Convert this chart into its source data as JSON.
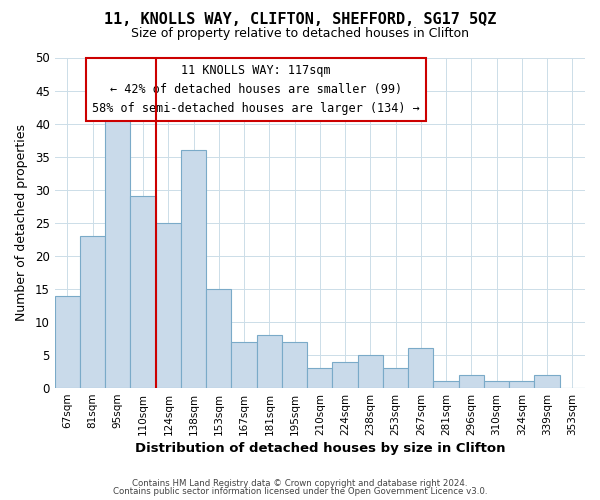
{
  "title": "11, KNOLLS WAY, CLIFTON, SHEFFORD, SG17 5QZ",
  "subtitle": "Size of property relative to detached houses in Clifton",
  "xlabel": "Distribution of detached houses by size in Clifton",
  "ylabel": "Number of detached properties",
  "bar_labels": [
    "67sqm",
    "81sqm",
    "95sqm",
    "110sqm",
    "124sqm",
    "138sqm",
    "153sqm",
    "167sqm",
    "181sqm",
    "195sqm",
    "210sqm",
    "224sqm",
    "238sqm",
    "253sqm",
    "267sqm",
    "281sqm",
    "296sqm",
    "310sqm",
    "324sqm",
    "339sqm",
    "353sqm"
  ],
  "bar_heights": [
    14,
    23,
    41,
    29,
    25,
    36,
    15,
    7,
    8,
    7,
    3,
    4,
    5,
    3,
    6,
    1,
    2,
    1,
    1,
    2,
    0
  ],
  "bar_color": "#c9daea",
  "bar_edge_color": "#7aaac8",
  "vline_x": 3.5,
  "vline_color": "#cc0000",
  "ylim": [
    0,
    50
  ],
  "yticks": [
    0,
    5,
    10,
    15,
    20,
    25,
    30,
    35,
    40,
    45,
    50
  ],
  "annotation_title": "11 KNOLLS WAY: 117sqm",
  "annotation_line1": "← 42% of detached houses are smaller (99)",
  "annotation_line2": "58% of semi-detached houses are larger (134) →",
  "annotation_box_color": "#ffffff",
  "annotation_box_edge": "#cc0000",
  "footer1": "Contains HM Land Registry data © Crown copyright and database right 2024.",
  "footer2": "Contains public sector information licensed under the Open Government Licence v3.0.",
  "background_color": "#ffffff",
  "grid_color": "#ccdde8"
}
